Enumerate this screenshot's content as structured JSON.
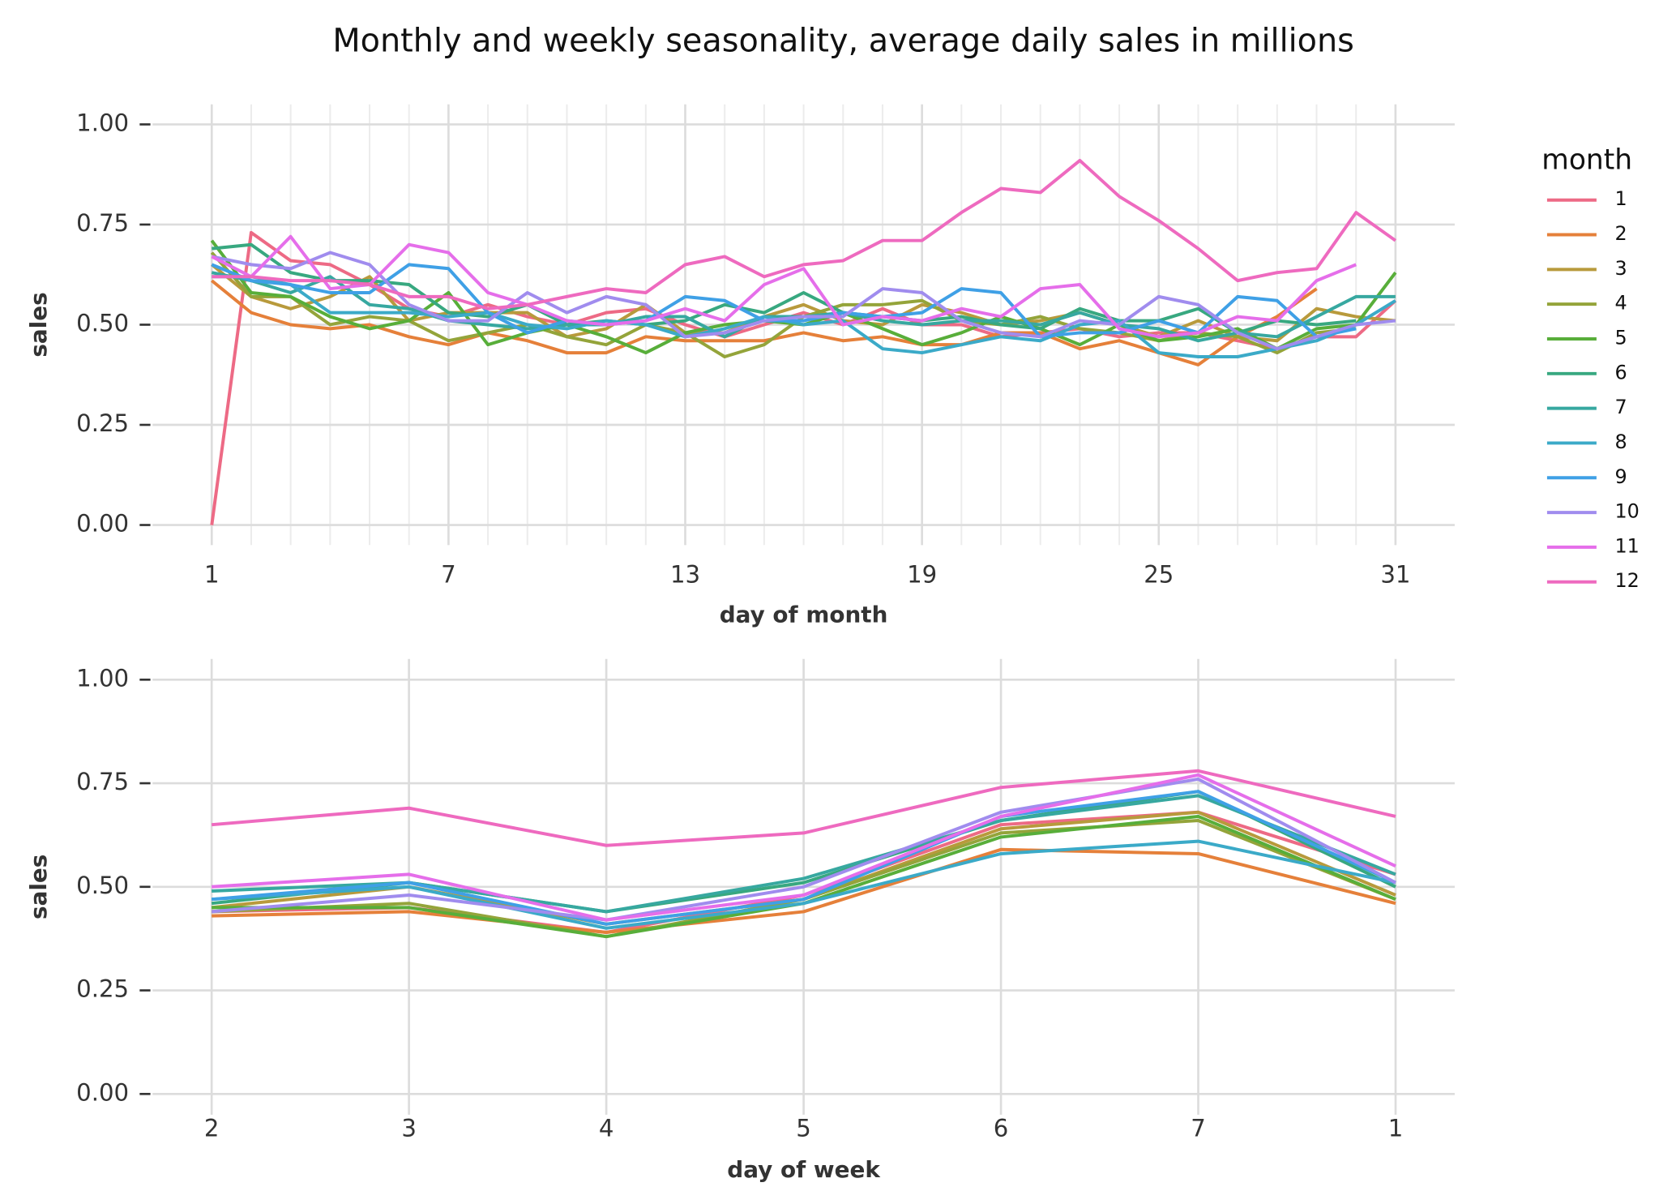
{
  "title": "Monthly and weekly seasonality, average daily sales in millions",
  "legend": {
    "title": "month"
  },
  "chart_data": [
    {
      "type": "line",
      "xlabel": "day of month",
      "ylabel": "sales",
      "x": [
        1,
        2,
        3,
        4,
        5,
        6,
        7,
        8,
        9,
        10,
        11,
        12,
        13,
        14,
        15,
        16,
        17,
        18,
        19,
        20,
        21,
        22,
        23,
        24,
        25,
        26,
        27,
        28,
        29,
        30,
        31
      ],
      "xlim": [
        -0.5,
        32.5
      ],
      "xticks": [
        1,
        7,
        13,
        19,
        25,
        31
      ],
      "ylim": [
        -0.05,
        1.05
      ],
      "yticks": [
        {
          "value": 0,
          "label": "0.00"
        },
        {
          "value": 0.25,
          "label": "0.25"
        },
        {
          "value": 0.5,
          "label": "0.50"
        },
        {
          "value": 0.75,
          "label": "0.75"
        },
        {
          "value": 1,
          "label": "1.00"
        }
      ],
      "grid": true,
      "minor_grid": true,
      "series": [
        {
          "name": "1",
          "color": "#ED6A85",
          "values": [
            0.0,
            0.73,
            0.66,
            0.65,
            0.6,
            0.54,
            0.52,
            0.55,
            0.52,
            0.5,
            0.53,
            0.54,
            0.5,
            0.47,
            0.5,
            0.53,
            0.5,
            0.54,
            0.5,
            0.5,
            0.47,
            0.48,
            0.49,
            0.47,
            0.48,
            0.48,
            0.46,
            0.44,
            0.47,
            0.47,
            0.56
          ]
        },
        {
          "name": "2",
          "color": "#E5803A",
          "values": [
            0.61,
            0.53,
            0.5,
            0.49,
            0.5,
            0.47,
            0.45,
            0.48,
            0.46,
            0.43,
            0.43,
            0.47,
            0.46,
            0.46,
            0.46,
            0.48,
            0.46,
            0.47,
            0.45,
            0.45,
            0.48,
            0.48,
            0.44,
            0.46,
            0.43,
            0.4,
            0.47,
            0.52,
            0.59,
            null,
            null
          ]
        },
        {
          "name": "3",
          "color": "#B89A3C",
          "values": [
            0.65,
            0.57,
            0.54,
            0.57,
            0.62,
            0.51,
            0.53,
            0.53,
            0.53,
            0.47,
            0.49,
            0.55,
            0.48,
            0.48,
            0.52,
            0.55,
            0.51,
            0.5,
            0.55,
            0.53,
            0.5,
            0.51,
            0.53,
            0.5,
            0.47,
            0.51,
            0.47,
            0.46,
            0.54,
            0.52,
            0.51
          ]
        },
        {
          "name": "4",
          "color": "#94A43A",
          "values": [
            0.68,
            0.57,
            0.57,
            0.5,
            0.52,
            0.51,
            0.46,
            0.48,
            0.5,
            0.47,
            0.45,
            0.5,
            0.48,
            0.42,
            0.45,
            0.52,
            0.55,
            0.55,
            0.56,
            0.51,
            0.5,
            0.52,
            0.49,
            0.48,
            0.46,
            0.48,
            0.47,
            0.43,
            0.48,
            0.49,
            null
          ]
        },
        {
          "name": "5",
          "color": "#58AE3A",
          "values": [
            0.71,
            0.58,
            0.57,
            0.52,
            0.49,
            0.51,
            0.58,
            0.45,
            0.48,
            0.5,
            0.47,
            0.43,
            0.48,
            0.5,
            0.51,
            0.5,
            0.53,
            0.49,
            0.45,
            0.48,
            0.52,
            0.49,
            0.45,
            0.5,
            0.46,
            0.47,
            0.49,
            0.44,
            0.49,
            0.5,
            0.63
          ]
        },
        {
          "name": "6",
          "color": "#38A880",
          "values": [
            0.69,
            0.7,
            0.63,
            0.61,
            0.61,
            0.6,
            0.53,
            0.52,
            0.55,
            0.5,
            0.51,
            0.5,
            0.51,
            0.55,
            0.53,
            0.58,
            0.53,
            0.52,
            0.51,
            0.52,
            0.5,
            0.49,
            0.54,
            0.51,
            0.51,
            0.54,
            0.48,
            0.51,
            0.5,
            0.51,
            null
          ]
        },
        {
          "name": "7",
          "color": "#37A8A0",
          "values": [
            0.63,
            0.61,
            0.58,
            0.62,
            0.55,
            0.54,
            0.51,
            0.5,
            0.49,
            0.5,
            0.5,
            0.52,
            0.52,
            0.47,
            0.52,
            0.52,
            0.53,
            0.51,
            0.5,
            0.51,
            0.51,
            0.5,
            0.53,
            0.5,
            0.49,
            0.46,
            0.48,
            0.47,
            0.52,
            0.57,
            0.57
          ]
        },
        {
          "name": "8",
          "color": "#3BAAC8",
          "values": [
            0.62,
            0.62,
            0.6,
            0.53,
            0.53,
            0.53,
            0.52,
            0.53,
            0.5,
            0.49,
            0.51,
            0.5,
            0.47,
            0.49,
            0.52,
            0.5,
            0.51,
            0.44,
            0.43,
            0.45,
            0.47,
            0.46,
            0.5,
            0.51,
            0.43,
            0.42,
            0.42,
            0.44,
            0.46,
            0.5,
            0.56
          ]
        },
        {
          "name": "9",
          "color": "#3FA0E6",
          "values": [
            0.65,
            0.61,
            0.6,
            0.58,
            0.58,
            0.65,
            0.64,
            0.53,
            0.48,
            0.51,
            0.5,
            0.51,
            0.57,
            0.56,
            0.51,
            0.51,
            0.53,
            0.52,
            0.53,
            0.59,
            0.58,
            0.47,
            0.48,
            0.48,
            0.51,
            0.48,
            0.57,
            0.56,
            0.47,
            0.49,
            null
          ]
        },
        {
          "name": "10",
          "color": "#A08CEE",
          "values": [
            0.67,
            0.65,
            0.64,
            0.68,
            0.65,
            0.55,
            0.51,
            0.51,
            0.58,
            0.53,
            0.57,
            0.55,
            0.47,
            0.48,
            0.51,
            0.52,
            0.52,
            0.59,
            0.58,
            0.51,
            0.48,
            0.47,
            0.51,
            0.5,
            0.57,
            0.55,
            0.48,
            0.44,
            0.47,
            0.5,
            0.51
          ]
        },
        {
          "name": "11",
          "color": "#E56EEA",
          "values": [
            0.67,
            0.62,
            0.72,
            0.59,
            0.6,
            0.7,
            0.68,
            0.58,
            0.55,
            0.51,
            0.5,
            0.51,
            0.54,
            0.51,
            0.6,
            0.64,
            0.5,
            0.52,
            0.51,
            0.54,
            0.52,
            0.59,
            0.6,
            0.49,
            0.47,
            0.48,
            0.52,
            0.51,
            0.61,
            0.65,
            null
          ]
        },
        {
          "name": "12",
          "color": "#EE6ABF",
          "values": [
            0.62,
            0.62,
            0.61,
            0.61,
            0.6,
            0.57,
            0.57,
            0.54,
            0.55,
            0.57,
            0.59,
            0.58,
            0.65,
            0.67,
            0.62,
            0.65,
            0.66,
            0.71,
            0.71,
            0.78,
            0.84,
            0.83,
            0.91,
            0.82,
            0.76,
            0.69,
            0.61,
            0.63,
            0.64,
            0.78,
            0.71
          ]
        }
      ]
    },
    {
      "type": "line",
      "xlabel": "day of week",
      "ylabel": "sales",
      "categories": [
        "2",
        "3",
        "4",
        "5",
        "6",
        "7",
        "1"
      ],
      "ylim": [
        -0.05,
        1.05
      ],
      "yticks": [
        {
          "value": 0,
          "label": "0.00"
        },
        {
          "value": 0.25,
          "label": "0.25"
        },
        {
          "value": 0.5,
          "label": "0.50"
        },
        {
          "value": 0.75,
          "label": "0.75"
        },
        {
          "value": 1,
          "label": "1.00"
        }
      ],
      "grid": true,
      "series": [
        {
          "name": "1",
          "color": "#ED6A85",
          "values": [
            0.44,
            0.45,
            0.39,
            0.48,
            0.65,
            0.68,
            0.53
          ]
        },
        {
          "name": "2",
          "color": "#E5803A",
          "values": [
            0.43,
            0.44,
            0.39,
            0.44,
            0.59,
            0.58,
            0.46
          ]
        },
        {
          "name": "3",
          "color": "#B89A3C",
          "values": [
            0.45,
            0.5,
            0.41,
            0.47,
            0.64,
            0.68,
            0.48
          ]
        },
        {
          "name": "4",
          "color": "#94A43A",
          "values": [
            0.44,
            0.46,
            0.38,
            0.47,
            0.63,
            0.66,
            0.47
          ]
        },
        {
          "name": "5",
          "color": "#58AE3A",
          "values": [
            0.45,
            0.45,
            0.38,
            0.46,
            0.62,
            0.67,
            0.47
          ]
        },
        {
          "name": "6",
          "color": "#38A880",
          "values": [
            0.46,
            0.51,
            0.44,
            0.51,
            0.66,
            0.73,
            0.5
          ]
        },
        {
          "name": "7",
          "color": "#37A8A0",
          "values": [
            0.49,
            0.51,
            0.44,
            0.52,
            0.66,
            0.72,
            0.53
          ]
        },
        {
          "name": "8",
          "color": "#3BAAC8",
          "values": [
            0.47,
            0.5,
            0.4,
            0.46,
            0.58,
            0.61,
            0.51
          ]
        },
        {
          "name": "9",
          "color": "#3FA0E6",
          "values": [
            0.47,
            0.51,
            0.41,
            0.47,
            0.67,
            0.73,
            0.51
          ]
        },
        {
          "name": "10",
          "color": "#A08CEE",
          "values": [
            0.44,
            0.48,
            0.42,
            0.5,
            0.68,
            0.76,
            0.51
          ]
        },
        {
          "name": "11",
          "color": "#E56EEA",
          "values": [
            0.5,
            0.53,
            0.42,
            0.48,
            0.67,
            0.77,
            0.55
          ]
        },
        {
          "name": "12",
          "color": "#EE6ABF",
          "values": [
            0.65,
            0.69,
            0.6,
            0.63,
            0.74,
            0.78,
            0.67
          ]
        }
      ]
    }
  ]
}
